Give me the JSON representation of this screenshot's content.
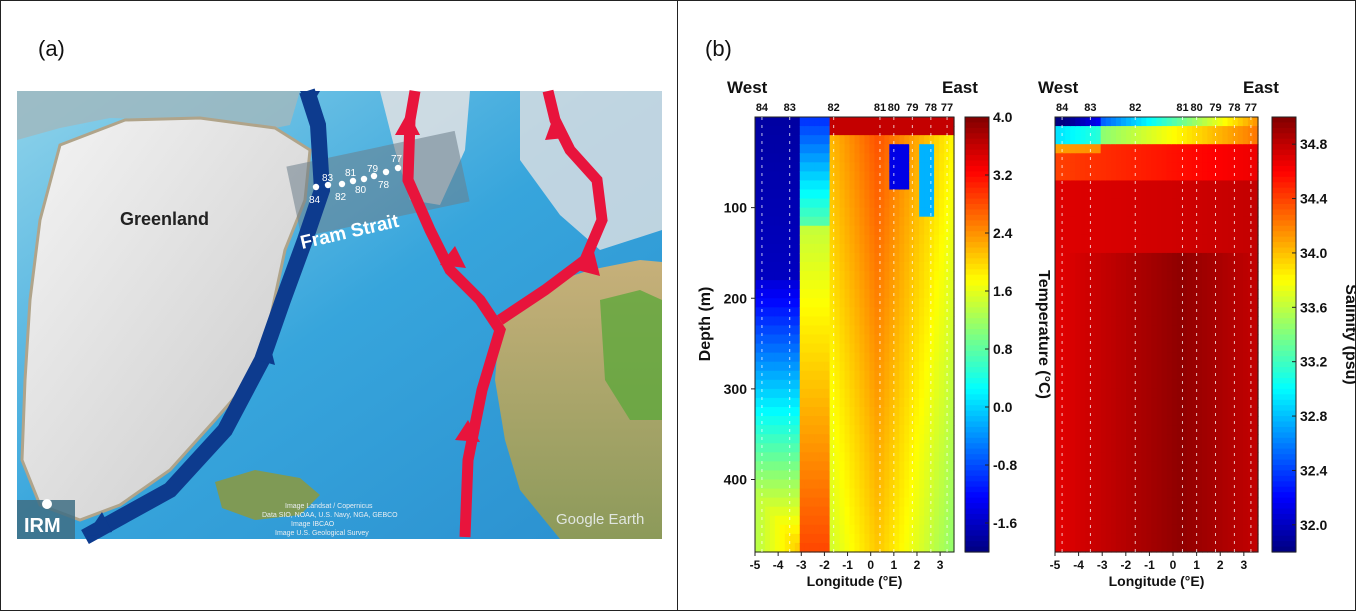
{
  "panel_a": {
    "label": "(a)",
    "greenland": "Greenland",
    "fram_strait": "Fram Strait",
    "irm": "IRM",
    "credits": [
      "Image Landsat / Copernicus",
      "Data SIO, NOAA, U.S. Navy, NGA, GEBCO",
      "Image IBCAO",
      "Image U.S. Geological Survey"
    ],
    "watermark": "Google Earth",
    "stations": [
      "77",
      "78",
      "79",
      "80",
      "81",
      "82",
      "83",
      "84"
    ]
  },
  "panel_b": {
    "label": "(b)",
    "west": "West",
    "east": "East"
  },
  "chart_data": [
    {
      "type": "heatmap",
      "variable": "temperature",
      "xlabel": "Longitude (°E)",
      "ylabel": "Depth (m)",
      "colorbar_label": "Temperature (°C)",
      "xlim": [
        -5,
        3.6
      ],
      "ylim": [
        480,
        0
      ],
      "xticks": [
        "-5",
        "-4",
        "-3",
        "-2",
        "-1",
        "0",
        "1",
        "2",
        "3"
      ],
      "yticks": [
        "100",
        "200",
        "300",
        "400"
      ],
      "colorbar_ticks": [
        "4.0",
        "3.2",
        "2.4",
        "1.6",
        "0.8",
        "0.0",
        "-0.8",
        "-1.6"
      ],
      "clim": [
        -2.0,
        4.0
      ],
      "stations": [
        {
          "name": "84",
          "lon": -4.7
        },
        {
          "name": "83",
          "lon": -3.5
        },
        {
          "name": "82",
          "lon": -1.6
        },
        {
          "name": "81",
          "lon": 0.4
        },
        {
          "name": "80",
          "lon": 1.0
        },
        {
          "name": "79",
          "lon": 1.8
        },
        {
          "name": "78",
          "lon": 2.6
        },
        {
          "name": "77",
          "lon": 3.3
        }
      ]
    },
    {
      "type": "heatmap",
      "variable": "salinity",
      "xlabel": "Longitude (°E)",
      "ylabel": "",
      "colorbar_label": "Salinity (psu)",
      "xlim": [
        -5,
        3.6
      ],
      "ylim": [
        480,
        0
      ],
      "xticks": [
        "-5",
        "-4",
        "-3",
        "-2",
        "-1",
        "0",
        "1",
        "2",
        "3"
      ],
      "colorbar_ticks": [
        "34.8",
        "34.4",
        "34.0",
        "33.6",
        "33.2",
        "32.8",
        "32.4",
        "32.0"
      ],
      "clim": [
        31.8,
        35.0
      ],
      "stations": [
        {
          "name": "84",
          "lon": -4.7
        },
        {
          "name": "83",
          "lon": -3.5
        },
        {
          "name": "82",
          "lon": -1.6
        },
        {
          "name": "81",
          "lon": 0.4
        },
        {
          "name": "80",
          "lon": 1.0
        },
        {
          "name": "79",
          "lon": 1.8
        },
        {
          "name": "78",
          "lon": 2.6
        },
        {
          "name": "77",
          "lon": 3.3
        }
      ]
    }
  ],
  "colors": {
    "east_greenland_current": "#0d3b8e",
    "atlantic_current": "#e8143c"
  }
}
